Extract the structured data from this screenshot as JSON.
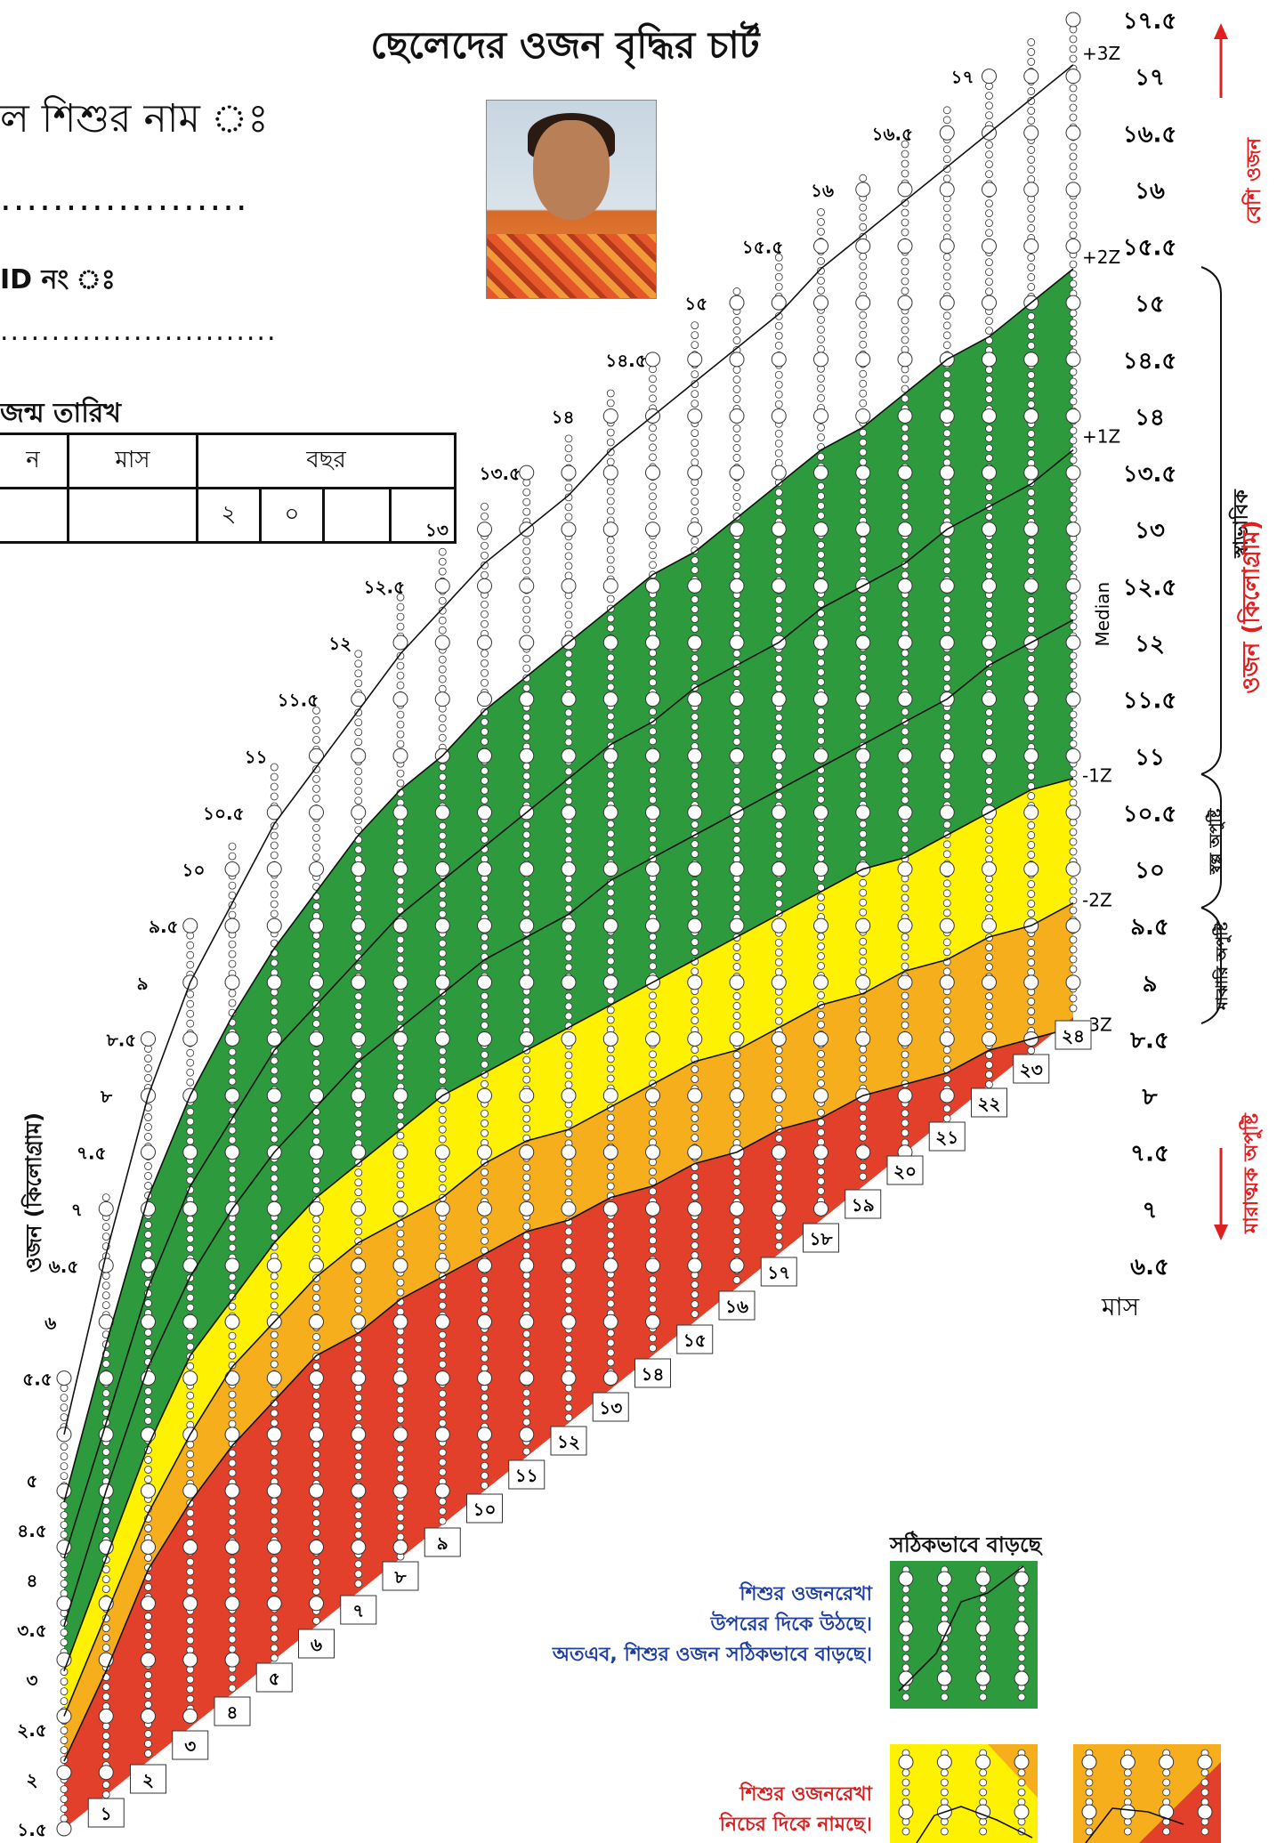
{
  "title": "ছেলেদের ওজন বৃদ্ধির চার্ট",
  "form": {
    "name_label": "ল শিশুর নাম ঃ",
    "name_dots": "...................",
    "id_label": "ID নং ঃ",
    "id_dots": "...........................",
    "dob_label": "জন্ম তারিখ",
    "dob_headers": [
      "ন",
      "মাস",
      "বছর"
    ],
    "year_digits": [
      "২",
      "০"
    ]
  },
  "chart_data": {
    "type": "area",
    "title": "ছেলেদের ওজন বৃদ্ধির চার্ট",
    "xlabel": "মাস",
    "ylabel": "ওজন (কিলোগ্রাম)",
    "x_ticks": [
      "১",
      "২",
      "৩",
      "৪",
      "৫",
      "৬",
      "৭",
      "৮",
      "৯",
      "১০",
      "১১",
      "১২",
      "১৩",
      "১৪",
      "১৫",
      "১৬",
      "১৭",
      "১৮",
      "১৯",
      "২০",
      "২১",
      "২২",
      "২৩",
      "২৪"
    ],
    "y_ticks_right": [
      "১৭.৫",
      "১৭",
      "১৬.৫",
      "১৬",
      "১৫.৫",
      "১৫",
      "১৪.৫",
      "১৪",
      "১৩.৫",
      "১৩",
      "১২.৫",
      "১২",
      "১১.৫",
      "১১",
      "১০.৫",
      "১০",
      "৯.৫",
      "৯",
      "৮.৫",
      "৮",
      "৭.৫",
      "৭",
      "৬.৫"
    ],
    "y_ticks_left": [
      "১.৫",
      "২",
      "২.৫",
      "৩",
      "৩.৫",
      "৪",
      "৪.৫",
      "৫",
      "৫.৫",
      "৬",
      "৬.৫",
      "৭",
      "৭.৫",
      "৮",
      "৮.৫",
      "৯",
      "৯.৫",
      "১০",
      "১০.৫",
      "১১",
      "১১.৫",
      "১২",
      "১২.৫",
      "১৩",
      "১৩.৫",
      "১৪",
      "১৪.৫",
      "১৫",
      "১৫.৫",
      "১৬",
      "১৬.৫",
      "১৭"
    ],
    "ylim": [
      1.5,
      17.5
    ],
    "xlim": [
      0,
      24
    ],
    "months": [
      0,
      1,
      2,
      3,
      4,
      5,
      6,
      7,
      8,
      9,
      10,
      11,
      12,
      13,
      14,
      15,
      16,
      17,
      18,
      19,
      20,
      21,
      22,
      23,
      24
    ],
    "series": [
      {
        "name": "+3Z",
        "values": [
          5.0,
          6.6,
          8.0,
          9.0,
          9.7,
          10.4,
          10.9,
          11.4,
          11.9,
          12.3,
          12.7,
          13.0,
          13.3,
          13.7,
          14.0,
          14.3,
          14.6,
          14.9,
          15.3,
          15.6,
          15.9,
          16.2,
          16.5,
          16.8,
          17.1
        ]
      },
      {
        "name": "+2Z",
        "values": [
          4.4,
          5.8,
          7.1,
          8.0,
          8.7,
          9.3,
          9.8,
          10.3,
          10.7,
          11.0,
          11.4,
          11.7,
          12.0,
          12.3,
          12.6,
          12.8,
          13.1,
          13.4,
          13.7,
          13.9,
          14.2,
          14.5,
          14.7,
          15.0,
          15.3
        ]
      },
      {
        "name": "+1Z",
        "values": [
          3.9,
          5.1,
          6.3,
          7.2,
          7.8,
          8.4,
          8.8,
          9.2,
          9.6,
          9.9,
          10.2,
          10.5,
          10.8,
          11.1,
          11.3,
          11.6,
          11.8,
          12.0,
          12.3,
          12.5,
          12.7,
          13.0,
          13.2,
          13.4,
          13.7
        ]
      },
      {
        "name": "Median",
        "values": [
          3.3,
          4.5,
          5.6,
          6.4,
          7.0,
          7.5,
          7.9,
          8.3,
          8.6,
          8.9,
          9.2,
          9.4,
          9.6,
          9.9,
          10.1,
          10.3,
          10.5,
          10.7,
          10.9,
          11.1,
          11.3,
          11.5,
          11.8,
          12.0,
          12.2
        ]
      },
      {
        "name": "-1Z",
        "values": [
          2.9,
          3.9,
          4.9,
          5.7,
          6.2,
          6.7,
          7.1,
          7.4,
          7.7,
          8.0,
          8.2,
          8.4,
          8.6,
          8.8,
          9.0,
          9.2,
          9.4,
          9.6,
          9.8,
          10.0,
          10.1,
          10.3,
          10.5,
          10.7,
          10.8
        ]
      },
      {
        "name": "-2Z",
        "values": [
          2.5,
          3.4,
          4.3,
          5.0,
          5.6,
          6.0,
          6.4,
          6.7,
          6.9,
          7.1,
          7.4,
          7.6,
          7.7,
          7.9,
          8.1,
          8.3,
          8.4,
          8.6,
          8.8,
          8.9,
          9.1,
          9.2,
          9.4,
          9.5,
          9.7
        ]
      },
      {
        "name": "-3Z",
        "values": [
          2.1,
          2.9,
          3.8,
          4.4,
          4.9,
          5.3,
          5.7,
          5.9,
          6.2,
          6.4,
          6.6,
          6.8,
          6.9,
          7.1,
          7.2,
          7.4,
          7.5,
          7.7,
          7.8,
          8.0,
          8.1,
          8.2,
          8.4,
          8.5,
          8.6
        ]
      }
    ],
    "z_labels": [
      "+3Z",
      "+2Z",
      "+1Z",
      "Median",
      "-1Z",
      "-2Z",
      "-3Z"
    ],
    "bands": [
      {
        "from": "+2Z",
        "to": "-1Z",
        "color": "#2e9a3e"
      },
      {
        "from": "-1Z",
        "to": "-2Z",
        "color": "#fef200"
      },
      {
        "from": "-2Z",
        "to": "-3Z",
        "color": "#f6ae1c"
      },
      {
        "from": "-3Z",
        "to": "floor",
        "color": "#e2402a"
      }
    ],
    "zone_labels": {
      "over": "বেশি ওজন",
      "normal": "স্বাভাবিক",
      "mild": "স্বল্প অপুষ্টি",
      "moderate": "মাঝারি অপুষ্টি",
      "severe": "মারাত্মক অপুষ্টি",
      "axis_right": "ওজন (কিলোগ্রাম)"
    },
    "grid": true,
    "legend": "bottom-right"
  },
  "legend": {
    "title": "সঠিকভাবে বাড়ছে",
    "good_lines": [
      "শিশুর ওজনরেখা",
      "উপরের দিকে উঠছে।",
      "অতএব, শিশুর ওজন সঠিকভাবে বাড়ছে।"
    ],
    "bad_lines": [
      "শিশুর ওজনরেখা",
      "নিচের দিকে নামছে।"
    ]
  },
  "colors": {
    "green": "#2e9a3e",
    "yellow": "#fef200",
    "orange": "#f6ae1c",
    "red": "#e2402a",
    "arrow_red": "#e02020",
    "legend_blue": "#1f3fa0"
  }
}
